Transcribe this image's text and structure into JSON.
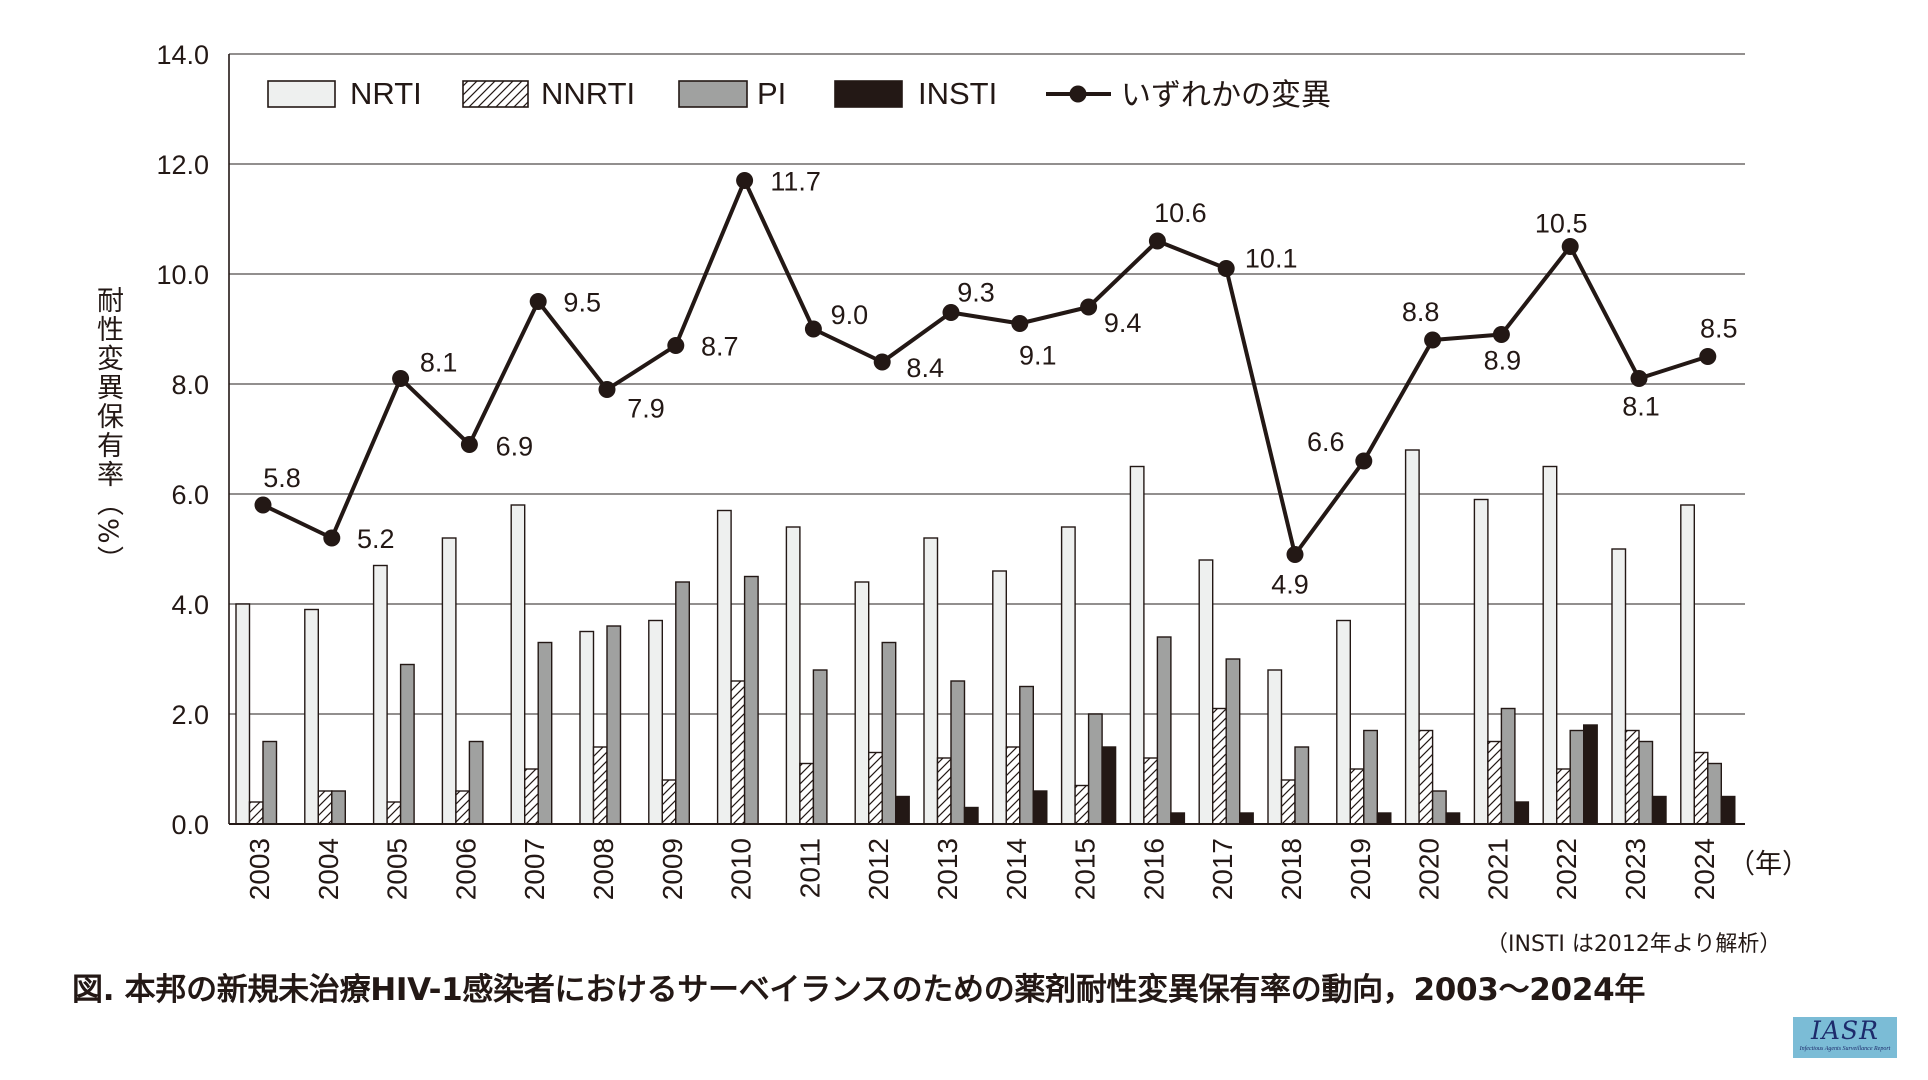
{
  "chart_data": {
    "type": "bar",
    "subtype": "grouped-bar-with-line",
    "title": "図. 本邦の新規未治療HIV-1感染者におけるサーベイランスのための薬剤耐性変異保有率の動向，2003～2024年",
    "xlabel": "（年）",
    "ylabel": "耐性変異保有率（%）",
    "ylim": [
      0,
      14
    ],
    "yticks": [
      "0.0",
      "2.0",
      "4.0",
      "6.0",
      "8.0",
      "10.0",
      "12.0",
      "14.0"
    ],
    "grid": true,
    "legend_position": "top",
    "note": "（INSTI は2012年より解析）",
    "categories": [
      "2003",
      "2004",
      "2005",
      "2006",
      "2007",
      "2008",
      "2009",
      "2010",
      "2011",
      "2012",
      "2013",
      "2014",
      "2015",
      "2016",
      "2017",
      "2018",
      "2019",
      "2020",
      "2021",
      "2022",
      "2023",
      "2024"
    ],
    "series": [
      {
        "name": "NRTI",
        "type": "bar",
        "color": "#eef0ef",
        "values": [
          4.0,
          3.9,
          4.7,
          5.2,
          5.8,
          3.5,
          3.7,
          5.7,
          5.4,
          4.4,
          5.2,
          4.6,
          5.4,
          6.5,
          4.8,
          2.8,
          3.7,
          6.8,
          5.9,
          6.5,
          5.0,
          5.8
        ]
      },
      {
        "name": "NNRTI",
        "type": "bar",
        "pattern": "hatched",
        "color": "#ffffff",
        "values": [
          0.4,
          0.6,
          0.4,
          0.6,
          1.0,
          1.4,
          0.8,
          2.6,
          1.1,
          1.3,
          1.2,
          1.4,
          0.7,
          1.2,
          2.1,
          0.8,
          1.0,
          1.7,
          1.5,
          1.0,
          1.7,
          1.3
        ]
      },
      {
        "name": "PI",
        "type": "bar",
        "color": "#a0a1a0",
        "values": [
          1.5,
          0.6,
          2.9,
          1.5,
          3.3,
          3.6,
          4.4,
          4.5,
          2.8,
          3.3,
          2.6,
          2.5,
          2.0,
          3.4,
          3.0,
          1.4,
          1.7,
          0.6,
          2.1,
          1.7,
          1.5,
          1.1
        ]
      },
      {
        "name": "INSTI",
        "type": "bar",
        "color": "#231815",
        "values": [
          null,
          null,
          null,
          null,
          null,
          null,
          null,
          null,
          null,
          0.5,
          0.3,
          0.6,
          1.4,
          0.2,
          0.2,
          0.0,
          0.2,
          0.2,
          0.4,
          1.8,
          0.5,
          0.5
        ]
      },
      {
        "name": "いずれかの変異",
        "type": "line",
        "color": "#231815",
        "values": [
          5.8,
          5.2,
          8.1,
          6.9,
          9.5,
          7.9,
          8.7,
          11.7,
          9.0,
          8.4,
          9.3,
          9.1,
          9.4,
          10.6,
          10.1,
          4.9,
          6.6,
          8.8,
          8.9,
          10.5,
          8.1,
          8.5
        ],
        "labels": [
          "5.8",
          "5.2",
          "8.1",
          "6.9",
          "9.5",
          "7.9",
          "8.7",
          "11.7",
          "9.0",
          "8.4",
          "9.3",
          "9.1",
          "9.4",
          "10.6",
          "10.1",
          "4.9",
          "6.6",
          "8.8",
          "8.9",
          "10.5",
          "8.1",
          "8.5"
        ]
      }
    ]
  },
  "logo": {
    "main": "IASR",
    "sub": "Infectious Agents Surveillance Report",
    "color": "#7bbcd6"
  }
}
